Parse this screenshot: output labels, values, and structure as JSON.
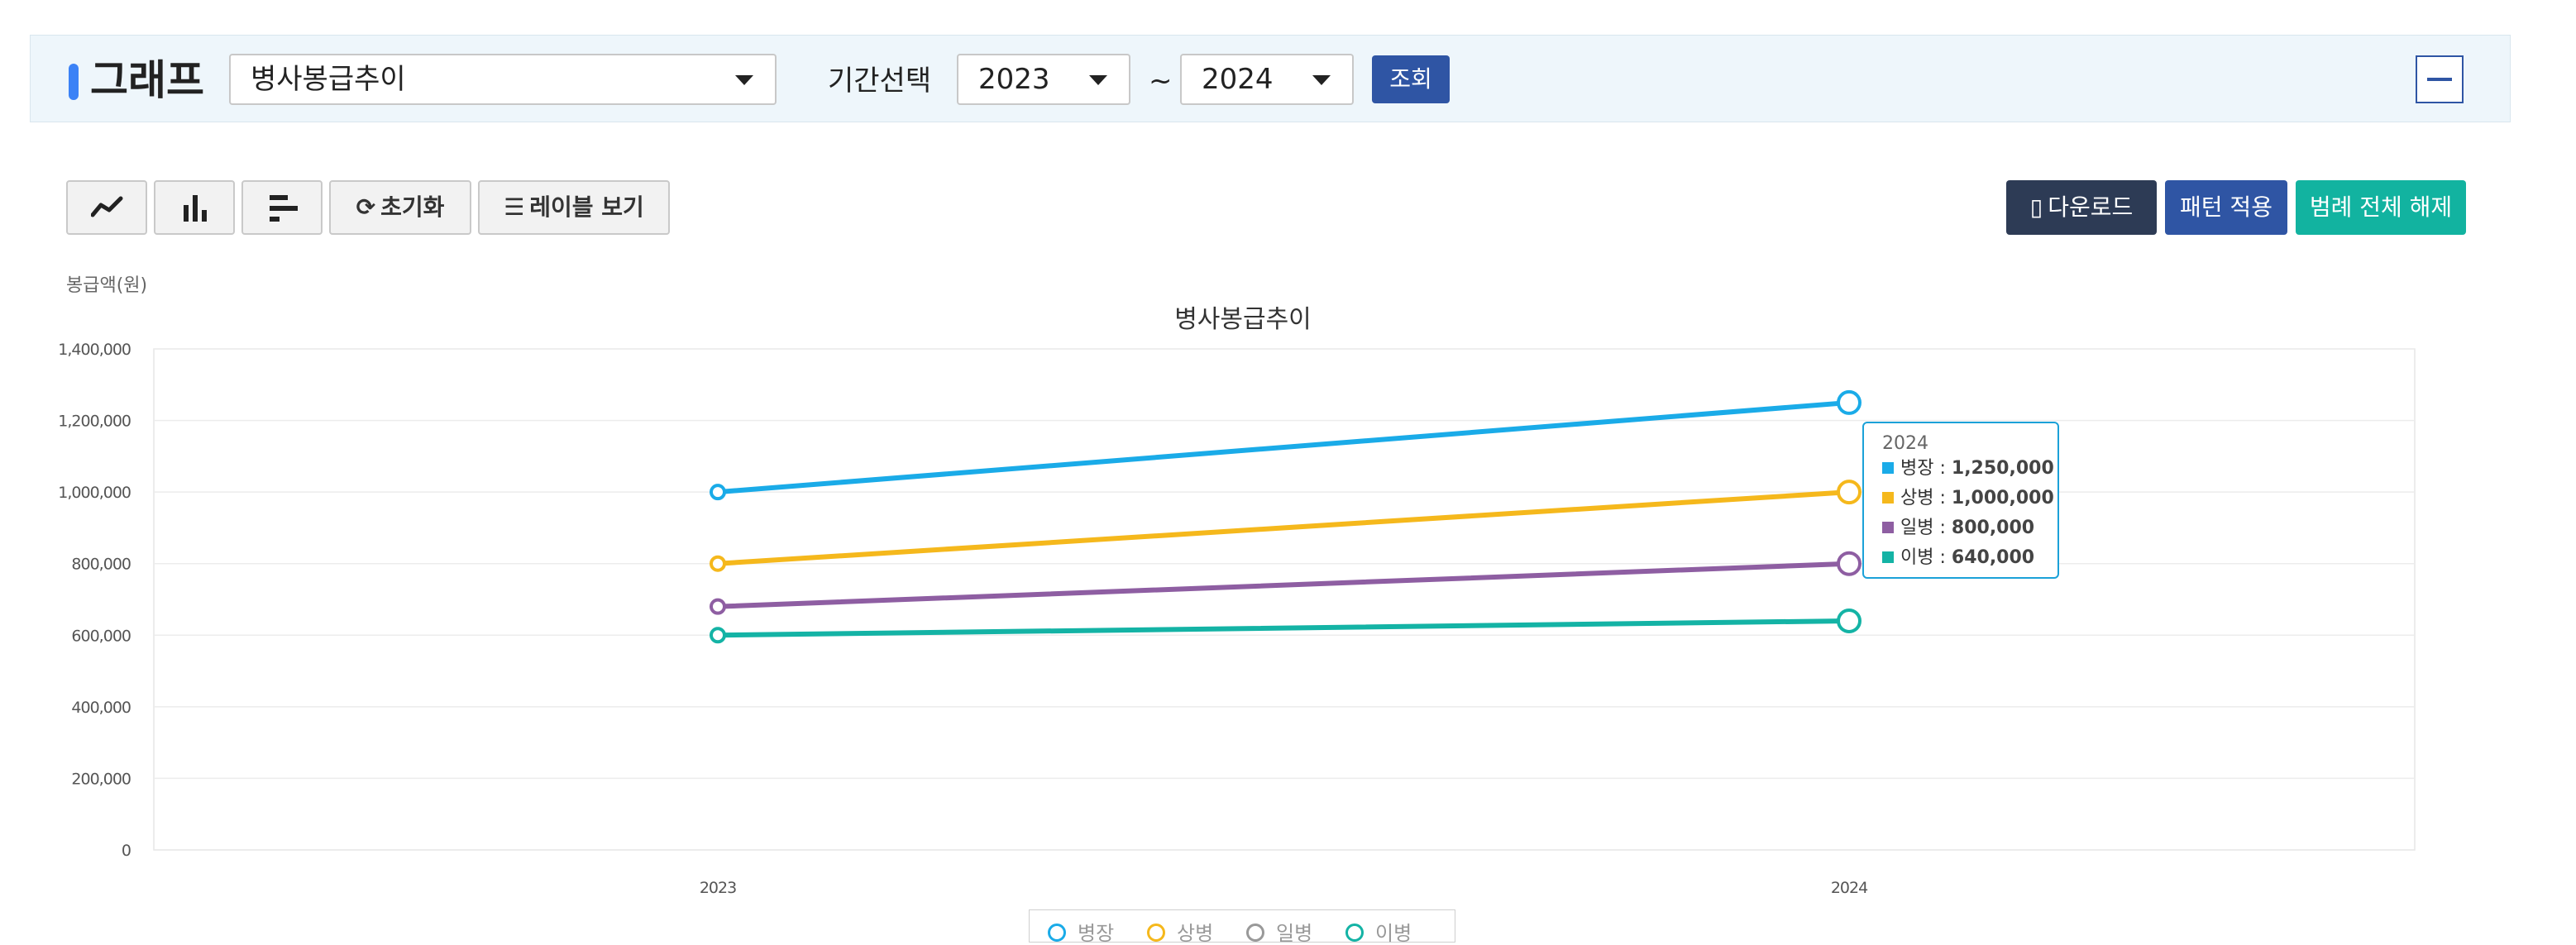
{
  "header": {
    "title": "그래프",
    "graph_select": "병사봉급추이",
    "period_label": "기간선택",
    "period_from": "2023",
    "period_sep": "~",
    "period_to": "2024",
    "search_label": "조회",
    "accent_color": "#3b82f6"
  },
  "toolbar": {
    "line_icon": "line-chart-icon",
    "bar_icon": "bar-chart-icon",
    "hbar_icon": "horizontal-bar-chart-icon",
    "reset_label": "초기화",
    "label_view_label": "레이블 보기",
    "download_label": "다운로드",
    "pattern_label": "패턴 적용",
    "legend_clear_label": "범례 전체 해제",
    "download_color": "#2d3b55",
    "pattern_color": "#2f55a4",
    "legend_clear_color": "#12b3a0"
  },
  "chart_data": {
    "type": "line",
    "title": "병사봉급추이",
    "ylabel": "봉급액(원)",
    "xlabel": "",
    "categories": [
      "2023",
      "2024"
    ],
    "ylim": [
      0,
      1400000
    ],
    "yticks": [
      "0",
      "200,000",
      "400,000",
      "600,000",
      "800,000",
      "1,000,000",
      "1,200,000",
      "1,400,000"
    ],
    "ytick_values": [
      0,
      200000,
      400000,
      600000,
      800000,
      1000000,
      1200000,
      1400000
    ],
    "grid": true,
    "legend_position": "bottom",
    "series": [
      {
        "name": "병장",
        "color": "#1aabe8",
        "values": [
          1000000,
          1250000
        ]
      },
      {
        "name": "상병",
        "color": "#f5b81c",
        "values": [
          800000,
          1000000
        ]
      },
      {
        "name": "일병",
        "color": "#8e5ea2",
        "values": [
          680000,
          800000
        ]
      },
      {
        "name": "이병",
        "color": "#14b3a5",
        "values": [
          600000,
          640000
        ]
      }
    ],
    "tooltip": {
      "category": "2024",
      "rows": [
        {
          "name": "병장",
          "value": "1,250,000"
        },
        {
          "name": "상병",
          "value": "1,000,000"
        },
        {
          "name": "일병",
          "value": "800,000"
        },
        {
          "name": "이병",
          "value": "640,000"
        }
      ]
    }
  }
}
